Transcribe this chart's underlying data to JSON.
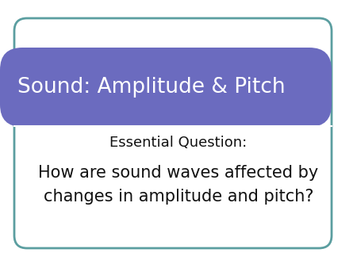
{
  "title": "Sound: Amplitude & Pitch",
  "subtitle": "Essential Question:",
  "body": "How are sound waves affected by\nchanges in amplitude and pitch?",
  "title_bg_color": "#6B6BBF",
  "title_text_color": "#ffffff",
  "body_text_color": "#111111",
  "subtitle_text_color": "#111111",
  "slide_bg_color": "#ffffff",
  "border_color": "#5B9EA0",
  "title_fontsize": 19,
  "subtitle_fontsize": 13,
  "body_fontsize": 15,
  "fig_width": 4.5,
  "fig_height": 3.38,
  "dpi": 100
}
